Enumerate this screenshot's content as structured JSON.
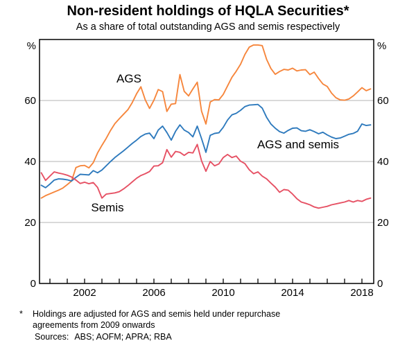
{
  "header": {
    "title": "Non-resident holdings of HQLA Securities*",
    "subtitle": "As a share of total outstanding AGS and semis respectively"
  },
  "axes": {
    "unit_left": "%",
    "unit_right": "%",
    "y_tick_labels": [
      "0",
      "20",
      "40",
      "60"
    ],
    "x_tick_labels": [
      "2002",
      "2006",
      "2010",
      "2014",
      "2018"
    ]
  },
  "chart_data": {
    "type": "line",
    "title": "Non-resident holdings of HQLA Securities*",
    "subtitle": "As a share of total outstanding AGS and semis respectively",
    "xlabel": "",
    "ylabel": "%",
    "xlim": [
      1999.4,
      2018.68
    ],
    "ylim": [
      0,
      80
    ],
    "y_gridlines": [
      20,
      40,
      60
    ],
    "y_tick_values": [
      0,
      20,
      40,
      60
    ],
    "x_tick_years": [
      2002,
      2006,
      2010,
      2014,
      2018
    ],
    "x_minor_tick_from": 2000,
    "x_minor_tick_to": 2018,
    "grid_color": "#b3b3b3",
    "frame_color": "#000000",
    "legend_position": "inline-labels",
    "x": [
      1999.5,
      1999.75,
      2000,
      2000.25,
      2000.5,
      2000.75,
      2001,
      2001.25,
      2001.5,
      2001.75,
      2002,
      2002.25,
      2002.5,
      2002.75,
      2003,
      2003.25,
      2003.5,
      2003.75,
      2004,
      2004.25,
      2004.5,
      2004.75,
      2005,
      2005.25,
      2005.5,
      2005.75,
      2006,
      2006.25,
      2006.5,
      2006.75,
      2007,
      2007.25,
      2007.5,
      2007.75,
      2008,
      2008.25,
      2008.5,
      2008.75,
      2009,
      2009.25,
      2009.5,
      2009.75,
      2010,
      2010.25,
      2010.5,
      2010.75,
      2011,
      2011.25,
      2011.5,
      2011.75,
      2012,
      2012.25,
      2012.5,
      2012.75,
      2013,
      2013.25,
      2013.5,
      2013.75,
      2014,
      2014.25,
      2014.5,
      2014.75,
      2015,
      2015.25,
      2015.5,
      2015.75,
      2016,
      2016.25,
      2016.5,
      2016.75,
      2017,
      2017.25,
      2017.5,
      2017.75,
      2018,
      2018.25,
      2018.5
    ],
    "series": [
      {
        "name": "AGS",
        "color": "#f6863c",
        "values": [
          28.0,
          28.8,
          29.4,
          30.0,
          30.6,
          31.3,
          32.4,
          33.6,
          38.0,
          38.6,
          38.7,
          37.9,
          39.6,
          42.8,
          45.3,
          47.6,
          50.2,
          52.4,
          54.0,
          55.5,
          57.0,
          59.3,
          62.2,
          64.5,
          60.2,
          57.4,
          60.1,
          63.6,
          62.9,
          56.4,
          58.8,
          59.0,
          68.5,
          63.0,
          61.5,
          63.8,
          66.0,
          56.5,
          52.3,
          59.5,
          60.3,
          60.2,
          62.0,
          64.8,
          67.6,
          69.6,
          71.9,
          75.1,
          77.5,
          78.2,
          78.2,
          78.0,
          73.5,
          70.5,
          68.6,
          69.5,
          70.2,
          70.0,
          70.6,
          69.7,
          70.0,
          70.1,
          68.5,
          69.3,
          67.2,
          65.4,
          64.6,
          62.4,
          60.9,
          60.2,
          60.1,
          60.5,
          61.5,
          62.8,
          64.2,
          63.2,
          63.8
        ]
      },
      {
        "name": "AGS and semis",
        "color": "#2e7abd",
        "values": [
          32.2,
          31.4,
          32.6,
          33.9,
          34.3,
          34.2,
          34.0,
          33.6,
          34.8,
          35.8,
          35.7,
          35.6,
          37.0,
          36.3,
          37.2,
          38.6,
          40.0,
          41.3,
          42.4,
          43.5,
          44.7,
          45.9,
          47.0,
          48.2,
          49.0,
          49.3,
          47.5,
          50.3,
          51.6,
          49.5,
          47.0,
          49.9,
          52.0,
          50.3,
          49.5,
          48.1,
          51.6,
          47.5,
          43.0,
          48.6,
          49.2,
          49.4,
          51.2,
          53.6,
          55.3,
          55.8,
          56.8,
          58.0,
          58.5,
          58.6,
          58.7,
          57.5,
          54.5,
          52.3,
          50.9,
          49.8,
          49.3,
          50.2,
          50.9,
          51.0,
          50.1,
          49.9,
          50.4,
          49.8,
          49.1,
          49.6,
          48.7,
          48.0,
          47.5,
          47.7,
          48.3,
          48.9,
          49.2,
          49.9,
          52.3,
          51.8,
          52.0
        ]
      },
      {
        "name": "Semis",
        "color": "#e65164",
        "values": [
          36.3,
          33.8,
          35.2,
          36.6,
          36.2,
          35.9,
          35.5,
          34.9,
          33.9,
          32.8,
          33.2,
          32.7,
          33.1,
          31.5,
          28.0,
          29.3,
          29.5,
          29.7,
          30.1,
          31.0,
          32.1,
          33.3,
          34.5,
          35.4,
          36.0,
          36.7,
          38.5,
          38.6,
          39.6,
          43.9,
          41.4,
          43.3,
          43.0,
          42.0,
          43.0,
          42.8,
          45.6,
          40.2,
          36.8,
          40.0,
          38.6,
          39.2,
          41.3,
          42.3,
          41.3,
          41.8,
          40.1,
          39.3,
          37.3,
          36.0,
          36.6,
          35.2,
          34.3,
          32.9,
          31.6,
          29.9,
          30.8,
          30.6,
          29.3,
          27.8,
          26.7,
          26.3,
          25.8,
          25.1,
          24.7,
          25.0,
          25.3,
          25.8,
          26.1,
          26.4,
          26.7,
          27.2,
          26.7,
          27.2,
          26.9,
          27.6,
          28.0
        ]
      }
    ],
    "series_labels": [
      {
        "text": "AGS",
        "color": "#f6863c"
      },
      {
        "text": "AGS and semis",
        "color": "#2e7abd"
      },
      {
        "text": "Semis",
        "color": "#e65164"
      }
    ]
  },
  "footnote": {
    "marker": "*",
    "lines": [
      "Holdings are adjusted for AGS and semis held under repurchase",
      "agreements from 2009 onwards"
    ]
  },
  "sources": {
    "label": "Sources:",
    "text": "ABS; AOFM; APRA; RBA"
  }
}
